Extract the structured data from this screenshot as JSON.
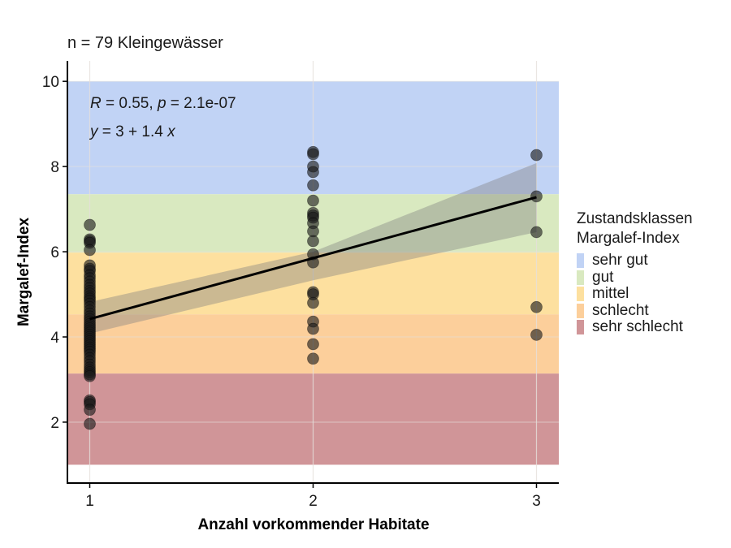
{
  "subtitle": "n =  79 Kleingewässser",
  "chart_data": {
    "type": "scatter",
    "title": "",
    "subtitle": "n =  79 Kleingewässer",
    "xlabel": "Anzahl vorkommender Habitate",
    "ylabel": "Margalef-Index",
    "xlim": [
      0.9,
      3.1
    ],
    "ylim": [
      0.57,
      10.48
    ],
    "xticks": [
      1,
      2,
      3
    ],
    "yticks": [
      2,
      4,
      6,
      8,
      10
    ],
    "grid": true,
    "annotations": {
      "stats_line": {
        "R_label": "R",
        "R_value": " = 0.55, ",
        "p_label": "p",
        "p_value": " = 2.1e-07"
      },
      "equation_line": {
        "y_label": "y",
        "middle": " = 3 + 1.4 ",
        "x_label": "x"
      }
    },
    "bands": [
      {
        "name": "sehr gut",
        "from": 7.35,
        "to": 10.0,
        "color": "#c1d3f5"
      },
      {
        "name": "gut",
        "from": 5.98,
        "to": 7.35,
        "color": "#d9e9c0"
      },
      {
        "name": "mittel",
        "from": 4.53,
        "to": 5.98,
        "color": "#fde09f"
      },
      {
        "name": "schlecht",
        "from": 3.14,
        "to": 4.53,
        "color": "#fccf9b"
      },
      {
        "name": "sehr schlecht",
        "from": 1.0,
        "to": 3.14,
        "color": "#d09598"
      }
    ],
    "regression": {
      "intercept": 3.0,
      "slope": 1.4,
      "x_start": 1,
      "x_end": 3,
      "y_start": 4.42,
      "y_end": 7.28,
      "ci_upper": [
        [
          1,
          4.82
        ],
        [
          2,
          6.0
        ],
        [
          3,
          8.08
        ]
      ],
      "ci_lower": [
        [
          1,
          4.08
        ],
        [
          2,
          5.33
        ],
        [
          3,
          6.46
        ]
      ]
    },
    "points": [
      {
        "x": 1,
        "y": [
          6.63,
          6.29,
          6.25,
          6.21,
          6.04,
          5.68,
          5.6,
          5.55,
          5.45,
          5.38,
          5.3,
          5.22,
          5.15,
          5.08,
          5.02,
          4.95,
          4.9,
          4.85,
          4.78,
          4.7,
          4.62,
          4.55,
          4.48,
          4.42,
          4.36,
          4.3,
          4.25,
          4.2,
          4.15,
          4.1,
          4.05,
          4.0,
          3.95,
          3.9,
          3.85,
          3.8,
          3.75,
          3.7,
          3.65,
          3.58,
          3.5,
          3.43,
          3.35,
          3.28,
          3.22,
          3.17,
          3.12,
          3.08,
          2.51,
          2.47,
          2.42,
          2.29,
          1.96
        ]
      },
      {
        "x": 2,
        "y": [
          8.34,
          8.29,
          8.0,
          7.87,
          7.56,
          7.2,
          6.91,
          6.85,
          6.8,
          6.67,
          6.48,
          6.25,
          5.94,
          5.75,
          5.05,
          4.8,
          4.36,
          4.19,
          3.83,
          3.49,
          5.0
        ]
      },
      {
        "x": 3,
        "y": [
          8.27,
          7.3,
          6.46,
          4.7,
          4.05
        ]
      }
    ],
    "legend": {
      "title_line1": "Zustandsklassen",
      "title_line2": "Margalef-Index",
      "position": "right",
      "entries": [
        "sehr gut",
        "gut",
        "mittel",
        "schlecht",
        "sehr schlecht"
      ]
    }
  },
  "colors": {
    "point_fill": "#1a1a1a",
    "ci_fill": "#808080",
    "line": "#000000",
    "axis": "#000000",
    "grid": "#e6e0dc"
  }
}
